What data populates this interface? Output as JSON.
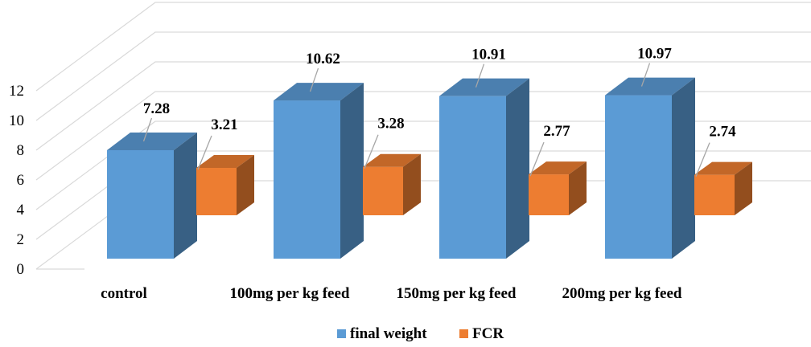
{
  "chart_data": {
    "type": "bar",
    "style": "3d-clustered-column",
    "categories": [
      "control",
      "100mg per kg feed",
      "150mg per kg feed",
      "200mg per kg feed"
    ],
    "series": [
      {
        "name": "final weight",
        "values": [
          7.28,
          10.62,
          10.91,
          10.97
        ],
        "color": "#5B9BD5"
      },
      {
        "name": "FCR",
        "values": [
          3.21,
          3.28,
          2.77,
          2.74
        ],
        "color": "#ED7D31"
      }
    ],
    "y_ticks": [
      0,
      2,
      4,
      6,
      8,
      10,
      12
    ],
    "ylim": [
      0,
      12
    ],
    "grid": true,
    "legend": "bottom-center"
  }
}
